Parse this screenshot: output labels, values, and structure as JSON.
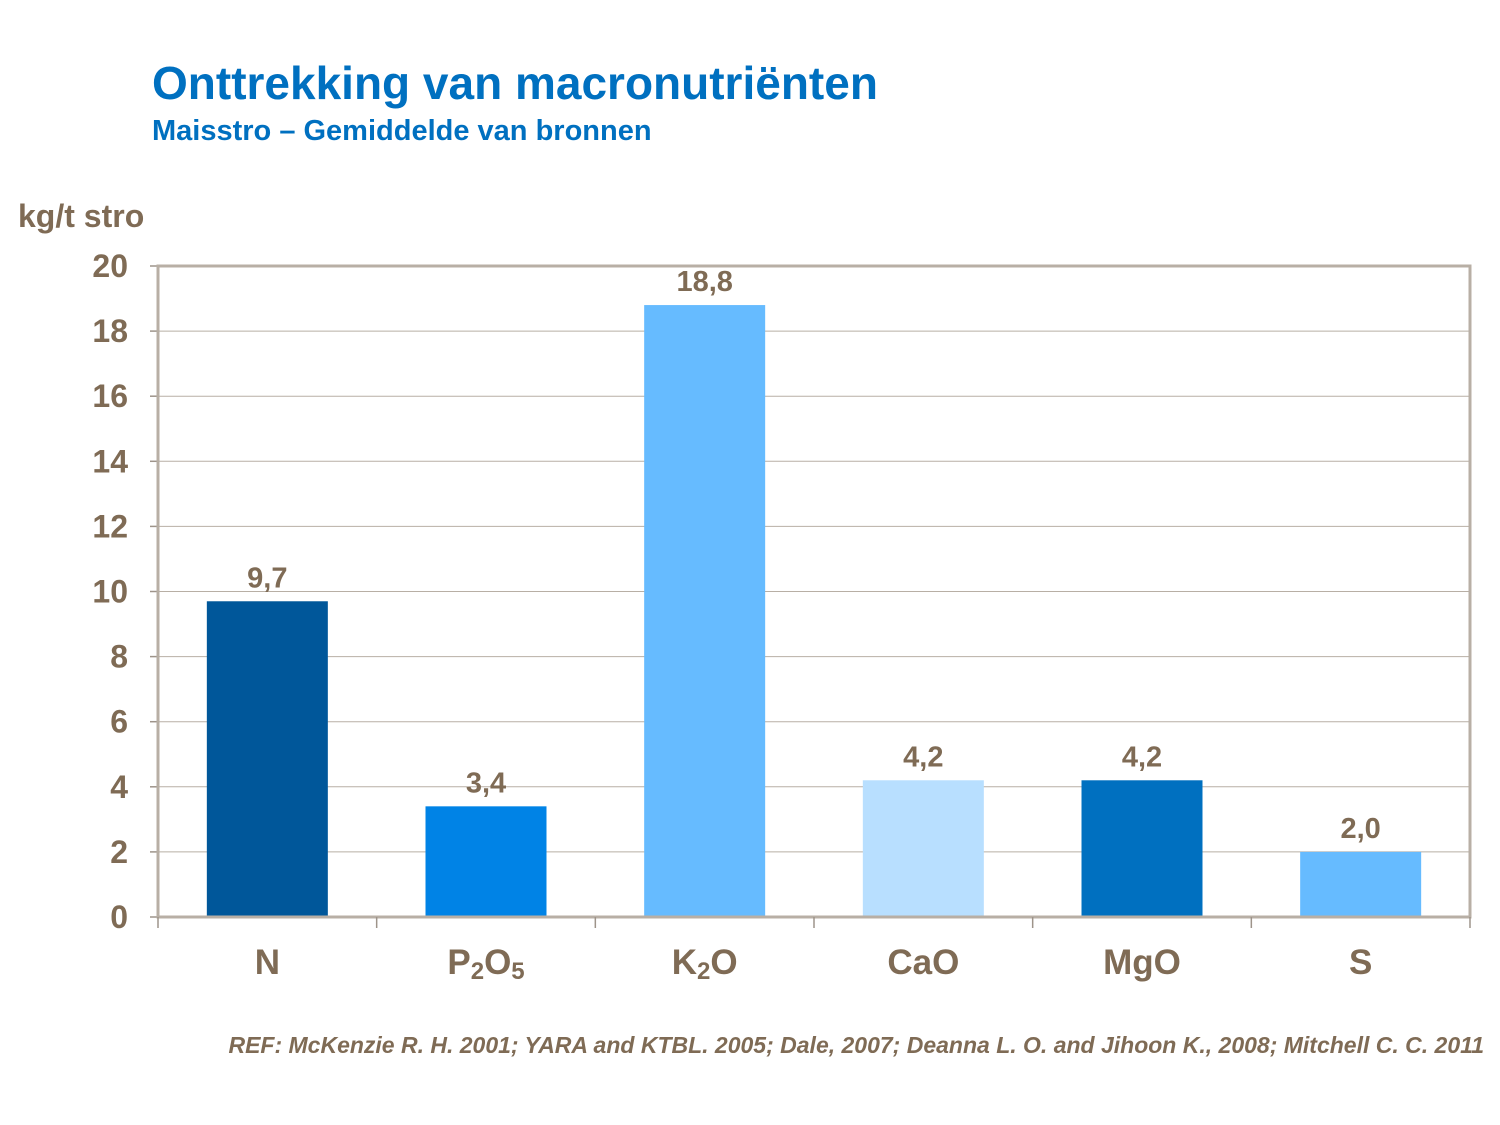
{
  "chart_data": {
    "type": "bar",
    "title": "Onttrekking van macronutriënten",
    "subtitle": "Maisstro – Gemiddelde  van bronnen",
    "ylabel": "kg/t stro",
    "xlabel": "",
    "categories": [
      "N",
      "P2O5",
      "K2O",
      "CaO",
      "MgO",
      "S"
    ],
    "values": [
      9.7,
      3.4,
      18.8,
      4.2,
      4.2,
      2.0
    ],
    "data_labels": [
      "9,7",
      "3,4",
      "18,8",
      "4,2",
      "4,2",
      "2,0"
    ],
    "colors": [
      "#00579A",
      "#0083E6",
      "#66BBFF",
      "#B8DFFF",
      "#0070C0",
      "#66BBFF"
    ],
    "ylim": [
      0,
      20
    ],
    "yticks": [
      0,
      2,
      4,
      6,
      8,
      10,
      12,
      14,
      16,
      18,
      20
    ],
    "grid": true,
    "legend": "none"
  },
  "footer": {
    "ref": "REF: McKenzie R. H. 2001; YARA and KTBL. 2005; Dale, 2007; Deanna L. O. and Jihoon K.,  2008; Mitchell C. C. 2011"
  }
}
